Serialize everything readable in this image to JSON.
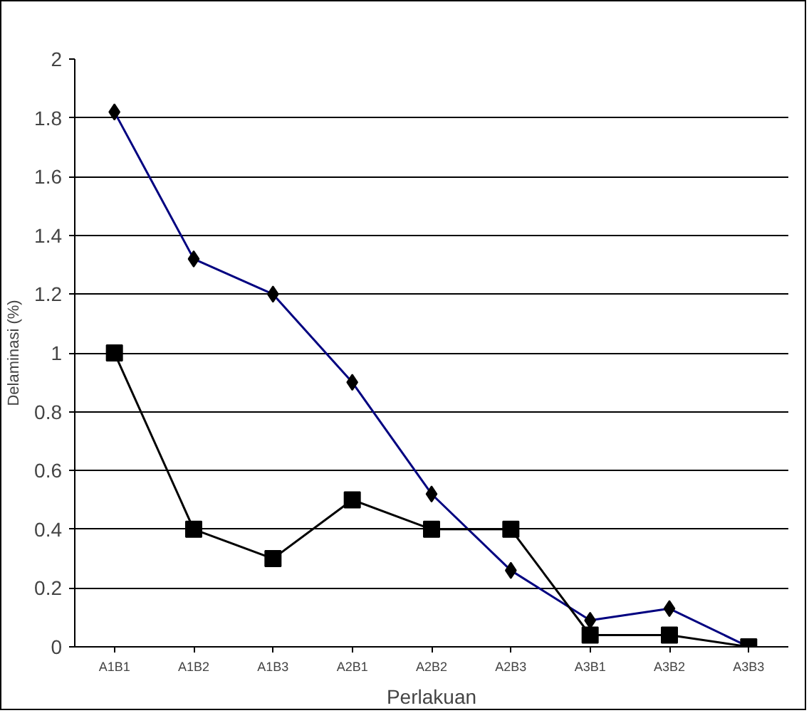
{
  "chart_data": {
    "type": "line",
    "xlabel": "Perlakuan",
    "ylabel": "Delaminasi (%)",
    "categories": [
      "A1B1",
      "A1B2",
      "A1B3",
      "A2B1",
      "A2B2",
      "A2B3",
      "A3B1",
      "A3B2",
      "A3B3"
    ],
    "series": [
      {
        "color": "#000080",
        "marker": "diamond",
        "values": [
          1.82,
          1.32,
          1.2,
          0.9,
          0.52,
          0.26,
          0.09,
          0.13,
          0.0
        ]
      },
      {
        "color": "#000000",
        "marker": "square",
        "values": [
          1.0,
          0.4,
          0.3,
          0.5,
          0.4,
          0.4,
          0.04,
          0.04,
          0.0
        ]
      }
    ],
    "ylim": [
      0,
      2
    ],
    "yticks": [
      0,
      0.2,
      0.4,
      0.6,
      0.8,
      1,
      1.2,
      1.4,
      1.6,
      1.8,
      2
    ],
    "grid": "y"
  }
}
